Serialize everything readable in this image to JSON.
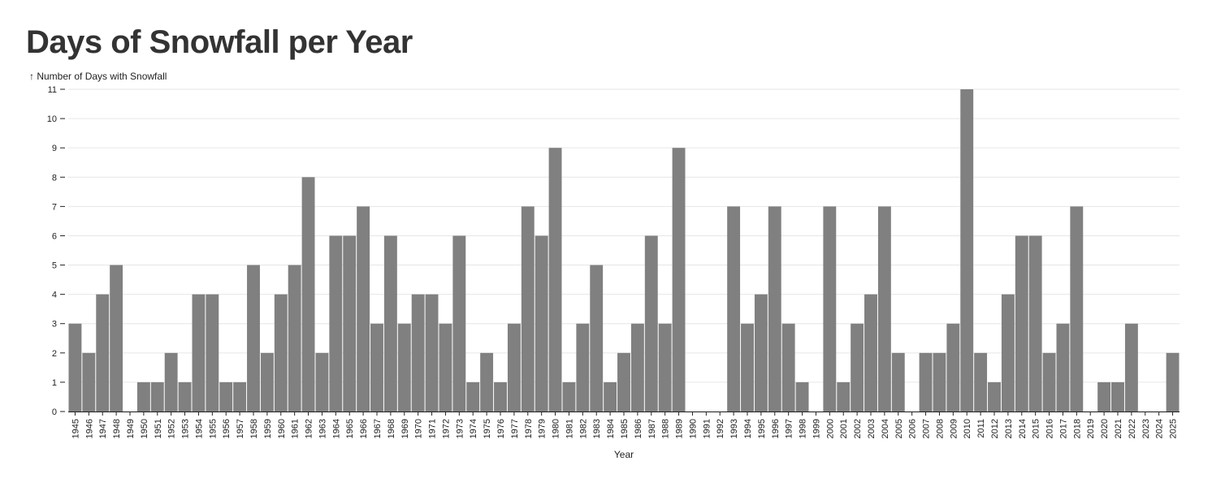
{
  "chart_data": {
    "type": "bar",
    "title": "Days of Snowfall per Year",
    "ylabel": "↑ Number of Days with Snowfall",
    "xlabel": "Year",
    "ylim": [
      0,
      11
    ],
    "yticks": [
      0,
      1,
      2,
      3,
      4,
      5,
      6,
      7,
      8,
      9,
      10,
      11
    ],
    "grid": true,
    "bar_color": "#808080",
    "categories": [
      "1945",
      "1946",
      "1947",
      "1948",
      "1949",
      "1950",
      "1951",
      "1952",
      "1953",
      "1954",
      "1955",
      "1956",
      "1957",
      "1958",
      "1959",
      "1960",
      "1961",
      "1962",
      "1963",
      "1964",
      "1965",
      "1966",
      "1967",
      "1968",
      "1969",
      "1970",
      "1971",
      "1972",
      "1973",
      "1974",
      "1975",
      "1976",
      "1977",
      "1978",
      "1979",
      "1980",
      "1981",
      "1982",
      "1983",
      "1984",
      "1985",
      "1986",
      "1987",
      "1988",
      "1989",
      "1990",
      "1991",
      "1992",
      "1993",
      "1994",
      "1995",
      "1996",
      "1997",
      "1998",
      "1999",
      "2000",
      "2001",
      "2002",
      "2003",
      "2004",
      "2005",
      "2006",
      "2007",
      "2008",
      "2009",
      "2010",
      "2011",
      "2012",
      "2013",
      "2014",
      "2015",
      "2016",
      "2017",
      "2018",
      "2019",
      "2020",
      "2021",
      "2022",
      "2023",
      "2024",
      "2025"
    ],
    "values": [
      3,
      2,
      4,
      5,
      0,
      1,
      1,
      2,
      1,
      4,
      4,
      1,
      1,
      5,
      2,
      4,
      5,
      8,
      2,
      6,
      6,
      7,
      3,
      6,
      3,
      4,
      4,
      3,
      6,
      1,
      2,
      1,
      3,
      7,
      6,
      9,
      1,
      3,
      5,
      1,
      2,
      3,
      6,
      3,
      9,
      0,
      0,
      0,
      7,
      3,
      4,
      7,
      3,
      1,
      0,
      7,
      1,
      3,
      4,
      7,
      2,
      0,
      2,
      2,
      3,
      11,
      2,
      1,
      4,
      6,
      6,
      2,
      3,
      7,
      0,
      1,
      1,
      3,
      0,
      0,
      2
    ]
  }
}
